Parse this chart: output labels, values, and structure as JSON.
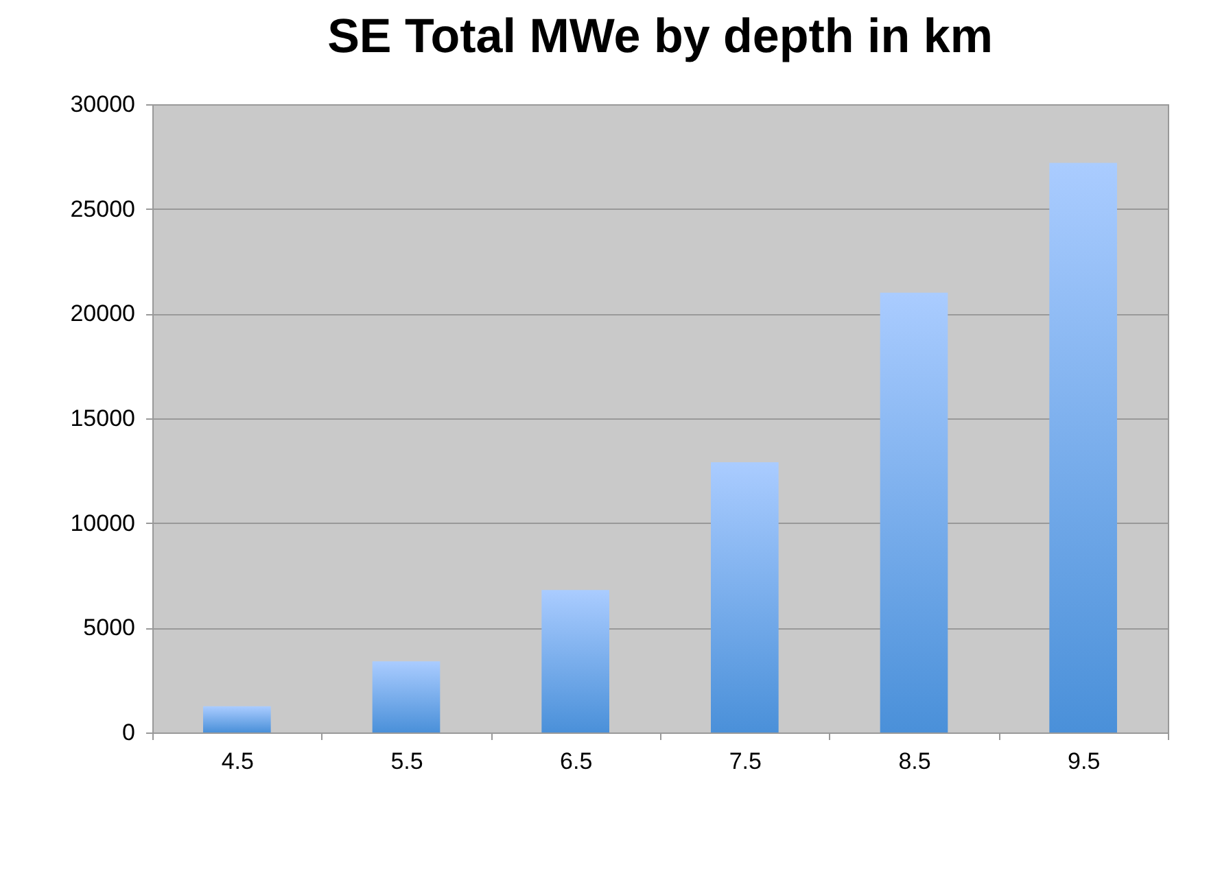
{
  "chart_data": {
    "type": "bar",
    "title": "SE Total MWe by depth in km",
    "categories": [
      "4.5",
      "5.5",
      "6.5",
      "7.5",
      "8.5",
      "9.5"
    ],
    "values": [
      1250,
      3400,
      6800,
      12900,
      21000,
      27200
    ],
    "color": "#4a90d9",
    "ylim": [
      0,
      30000
    ],
    "yticks": [
      0,
      5000,
      10000,
      15000,
      20000,
      25000,
      30000
    ],
    "grid": true
  }
}
